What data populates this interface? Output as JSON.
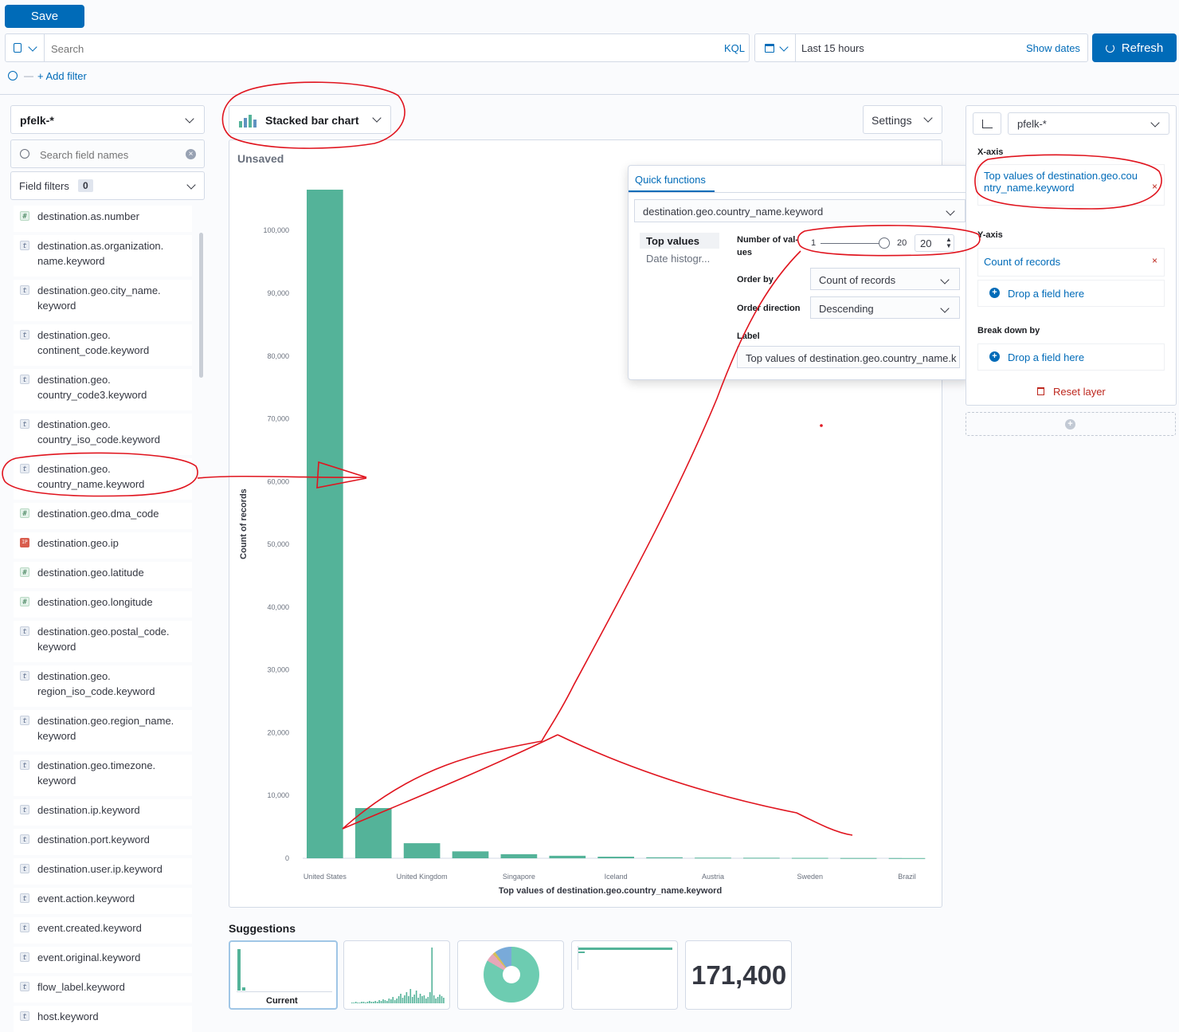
{
  "topbar": {
    "save_label": "Save"
  },
  "query": {
    "search_placeholder": "Search",
    "kql_label": "KQL",
    "time_range": "Last 15 hours",
    "show_dates": "Show dates",
    "refresh_label": "Refresh",
    "add_filter": "+ Add filter"
  },
  "left": {
    "index_pattern": "pfelk-*",
    "search_placeholder": "Search field names",
    "field_filters_label": "Field filters",
    "field_filters_count": "0",
    "fields": [
      {
        "type": "n",
        "name": "destination.as.number"
      },
      {
        "type": "t",
        "name": "destination.as.organization.\nname.keyword"
      },
      {
        "type": "t",
        "name": "destination.geo.city_name.\nkeyword"
      },
      {
        "type": "t",
        "name": "destination.geo.\ncontinent_code.keyword"
      },
      {
        "type": "t",
        "name": "destination.geo.\ncountry_code3.keyword"
      },
      {
        "type": "t",
        "name": "destination.geo.\ncountry_iso_code.keyword"
      },
      {
        "type": "t",
        "name": "destination.geo.\ncountry_name.keyword"
      },
      {
        "type": "n",
        "name": "destination.geo.dma_code"
      },
      {
        "type": "ip",
        "name": "destination.geo.ip"
      },
      {
        "type": "n",
        "name": "destination.geo.latitude"
      },
      {
        "type": "n",
        "name": "destination.geo.longitude"
      },
      {
        "type": "t",
        "name": "destination.geo.postal_code.\nkeyword"
      },
      {
        "type": "t",
        "name": "destination.geo.\nregion_iso_code.keyword"
      },
      {
        "type": "t",
        "name": "destination.geo.region_name.\nkeyword"
      },
      {
        "type": "t",
        "name": "destination.geo.timezone.\nkeyword"
      },
      {
        "type": "t",
        "name": "destination.ip.keyword"
      },
      {
        "type": "t",
        "name": "destination.port.keyword"
      },
      {
        "type": "t",
        "name": "destination.user.ip.keyword"
      },
      {
        "type": "t",
        "name": "event.action.keyword"
      },
      {
        "type": "t",
        "name": "event.created.keyword"
      },
      {
        "type": "t",
        "name": "event.original.keyword"
      },
      {
        "type": "t",
        "name": "flow_label.keyword"
      },
      {
        "type": "t",
        "name": "host.keyword"
      }
    ]
  },
  "center": {
    "chart_type_label": "Stacked bar chart",
    "settings_label": "Settings",
    "panel_title": "Unsaved",
    "suggestions_title": "Suggestions",
    "suggestion_current": "Current",
    "suggestion_metric": "171,400"
  },
  "quick": {
    "tab_label": "Quick functions",
    "field_select": "destination.geo.country_name.keyword",
    "functions": [
      "Top values",
      "Date histogr..."
    ],
    "num_values_label": "Number of val-\nues",
    "slider_min": "1",
    "slider_max": "20",
    "slider_value": "20",
    "order_by_label": "Order by",
    "order_by_value": "Count of records",
    "order_direction_label": "Order direction",
    "order_direction_value": "Descending",
    "label_label": "Label",
    "label_value": "Top values of destination.geo.country_name.k"
  },
  "right": {
    "index_pattern": "pfelk-*",
    "xaxis_label": "X-axis",
    "xaxis_value": "Top values of destination.geo.country_name.keyword",
    "yaxis_label": "Y-axis",
    "yaxis_value": "Count of records",
    "drop_field": "Drop a field here",
    "breakdown_label": "Break down by",
    "reset_layer": "Reset layer"
  },
  "chart_data": {
    "type": "bar",
    "categories": [
      "United States",
      "",
      "United Kingdom",
      "",
      "Singapore",
      "",
      "Iceland",
      "",
      "Austria",
      "",
      "Sweden",
      "",
      "Brazil"
    ],
    "values": [
      106500,
      8000,
      2400,
      1100,
      650,
      400,
      250,
      150,
      100,
      80,
      60,
      40,
      30
    ],
    "xlabel": "Top values of destination.geo.country_name.keyword",
    "ylabel": "Count of records",
    "ylim": [
      0,
      106500
    ],
    "yticks": [
      "0",
      "10,000",
      "20,000",
      "30,000",
      "40,000",
      "50,000",
      "60,000",
      "70,000",
      "80,000",
      "90,000",
      "100,000"
    ],
    "color": "#54b399"
  }
}
